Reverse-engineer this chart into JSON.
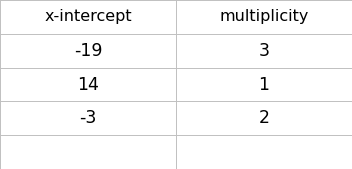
{
  "columns": [
    "x-intercept",
    "multiplicity"
  ],
  "rows": [
    [
      "-19",
      "3"
    ],
    [
      "14",
      "1"
    ],
    [
      "-3",
      "2"
    ]
  ],
  "border_color": "#c0c0c0",
  "text_color": "#000000",
  "header_fontsize": 11.5,
  "cell_fontsize": 12.5,
  "fig_bg": "#ffffff",
  "n_total_rows": 5,
  "col_split": 0.5
}
